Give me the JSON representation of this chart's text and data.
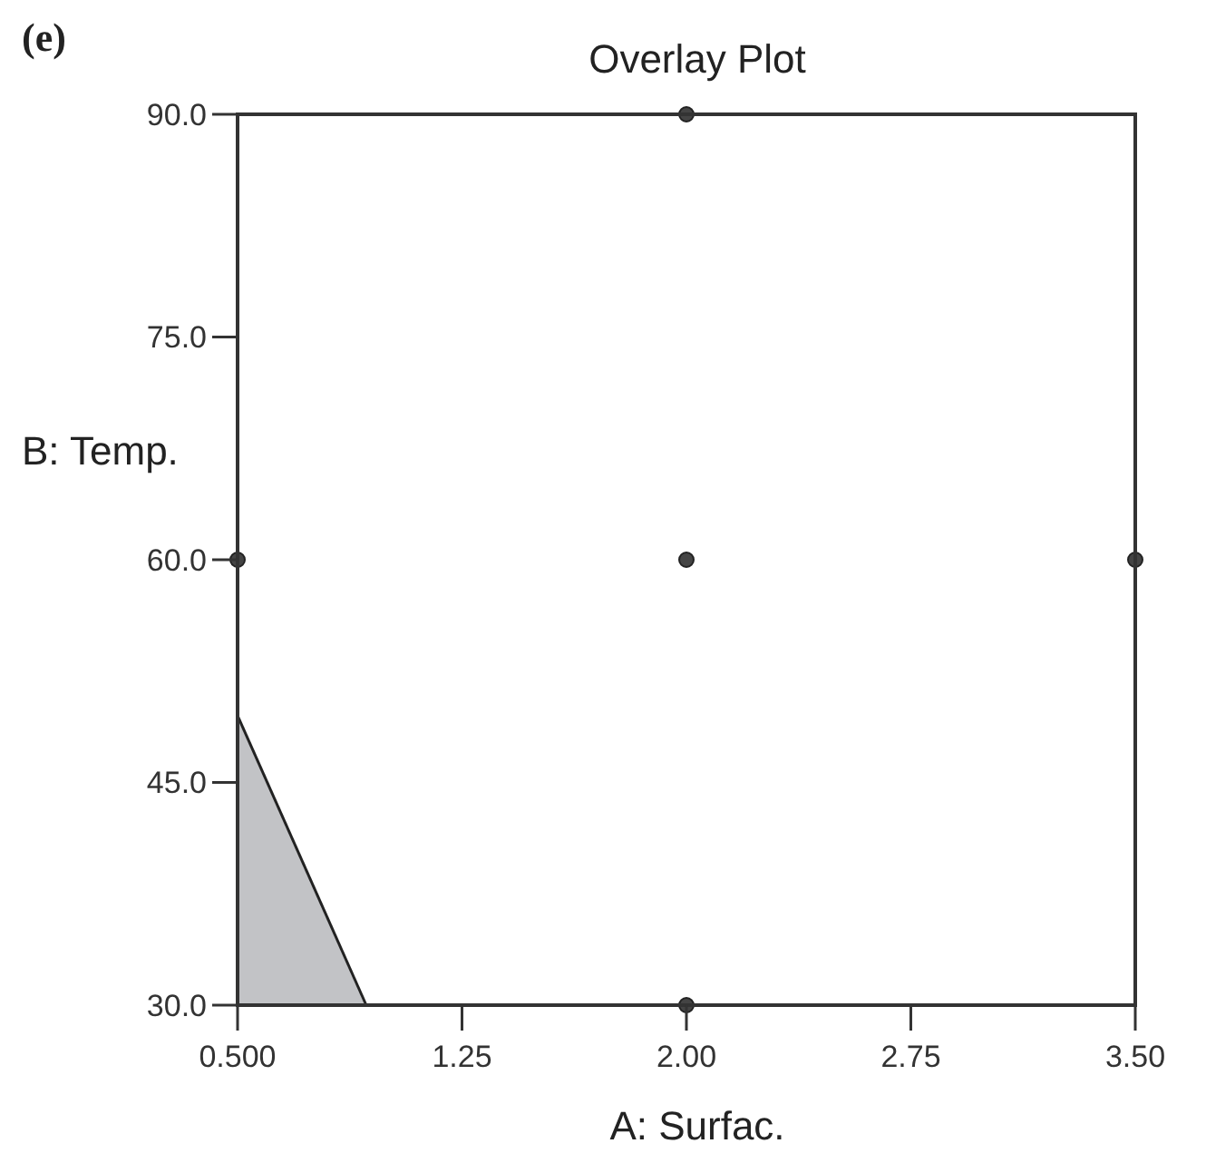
{
  "chart_data": {
    "type": "scatter",
    "title": "Overlay Plot",
    "annotations": [
      "(e)"
    ],
    "xlabel": "A: Surfac.",
    "ylabel": "B: Temp.",
    "xlim": [
      0.5,
      3.5
    ],
    "ylim": [
      30,
      90
    ],
    "xticks": [
      {
        "value": 0.5,
        "label": "0.500"
      },
      1.25,
      {
        "value": 2,
        "label": "2.00"
      },
      2.75,
      {
        "value": 3.5,
        "label": "3.50"
      }
    ],
    "yticks": [
      {
        "value": 30,
        "label": "30.0"
      },
      {
        "value": 45,
        "label": "45.0"
      },
      {
        "value": 60,
        "label": "60.0"
      },
      {
        "value": 75,
        "label": "75.0"
      },
      {
        "value": 90,
        "label": "90.0"
      }
    ],
    "grid": false,
    "marker": "circle",
    "series": [
      {
        "type": "area",
        "marker": "none",
        "color": "#c2c3c6",
        "x": [
          0.5,
          0.93
        ],
        "values": [
          49.5,
          30
        ]
      },
      {
        "color": "#444444",
        "x": [
          2,
          0.5,
          2,
          3.5,
          2
        ],
        "values": [
          90,
          60,
          60,
          60,
          30
        ]
      }
    ]
  }
}
